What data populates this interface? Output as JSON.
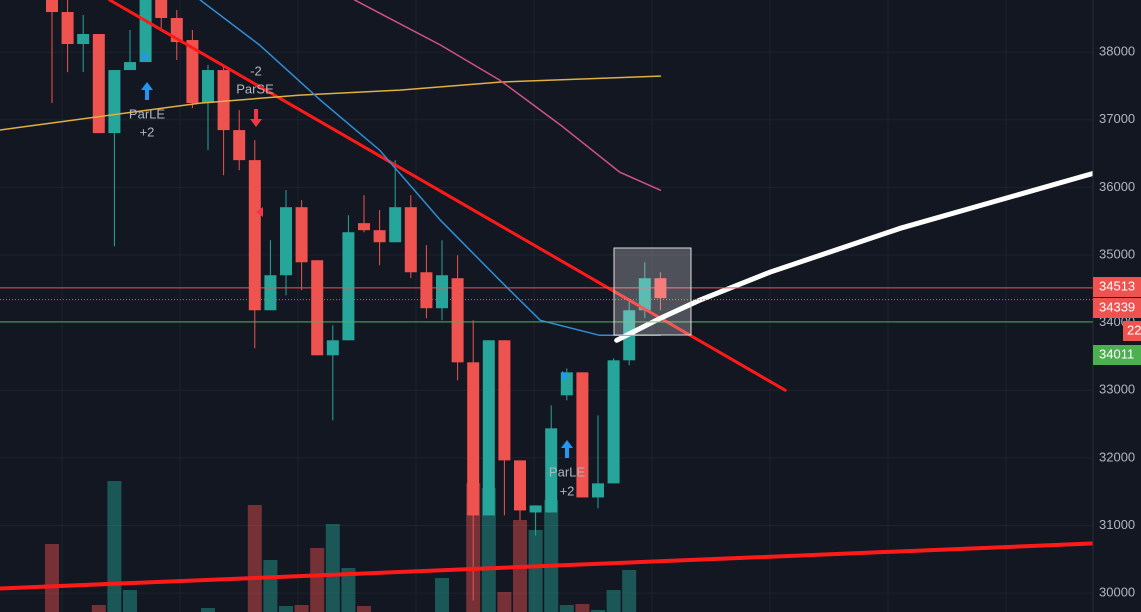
{
  "chart_data": {
    "type": "candlestick",
    "ylim": [
      29720,
      38770
    ],
    "yticks": [
      30000,
      31000,
      32000,
      33000,
      34000,
      35000,
      36000,
      37000,
      38000
    ],
    "grid": true,
    "up_color": "#26a69a",
    "down_color": "#ef5350",
    "open": [
      38770,
      38592,
      38119,
      38267,
      36802,
      37734,
      37852,
      38770,
      38504,
      38178,
      37246,
      37734,
      36846,
      36402,
      34182,
      34700,
      35706,
      34922,
      33516,
      33738,
      35470,
      35366,
      35188,
      35706,
      34744,
      34212,
      34656,
      33412,
      31148,
      33738,
      31962,
      31192,
      31192,
      32924,
      33264,
      31414,
      31622,
      33442,
      34182,
      34656
    ],
    "close": [
      38592,
      38119,
      38267,
      36802,
      37734,
      37852,
      38770,
      38504,
      38148,
      37246,
      37734,
      36846,
      36402,
      34182,
      34700,
      35706,
      34892,
      33516,
      33738,
      35336,
      35366,
      35188,
      35706,
      34744,
      34212,
      34700,
      33412,
      31148,
      33738,
      31962,
      31222,
      31296,
      32436,
      33264,
      31414,
      31622,
      33442,
      34182,
      34656,
      34360
    ],
    "high": [
      38770,
      38770,
      38548,
      38267,
      37734,
      38326,
      38770,
      38770,
      38622,
      38326,
      37808,
      37808,
      37142,
      36698,
      35218,
      35958,
      35810,
      34922,
      33960,
      35588,
      35884,
      35662,
      36402,
      35884,
      35144,
      35218,
      34996,
      34034,
      33738,
      33738,
      31962,
      31296,
      32776,
      33324,
      33264,
      32628,
      33472,
      34330,
      34892,
      34744
    ],
    "low": [
      37246,
      37704,
      37704,
      36802,
      35129,
      37734,
      37852,
      38326,
      37882,
      37172,
      36550,
      36180,
      36254,
      33620,
      34182,
      34404,
      34478,
      33516,
      32554,
      33738,
      35336,
      34848,
      35188,
      34656,
      34064,
      34034,
      33146,
      29890,
      31148,
      31148,
      31074,
      30852,
      31192,
      32850,
      31414,
      31252,
      31622,
      33368,
      34064,
      34182
    ],
    "volume": [
      68,
      0,
      0,
      7,
      131,
      22,
      0,
      0,
      0,
      0,
      4,
      0,
      0,
      107,
      52,
      6,
      7,
      64,
      88,
      44,
      6,
      0,
      0,
      0,
      0,
      34,
      0,
      129,
      124,
      20,
      92,
      82,
      112,
      7,
      8,
      2,
      22,
      42,
      0,
      0
    ],
    "y2lim": [
      0,
      200
    ],
    "lines": [
      {
        "color": "#ff1a1a",
        "width": 3,
        "x": [
          3.7,
          47
        ],
        "values": [
          38770,
          33000
        ]
      },
      {
        "color": "#ff1a1a",
        "width": 4,
        "x": [
          -3.4,
          66.8
        ],
        "values": [
          30068,
          30734
        ]
      },
      {
        "color": "#ffffff",
        "width": 5,
        "x": [
          36.2,
          39,
          41.5,
          46,
          54.4,
          66.8
        ],
        "values": [
          33738,
          34064,
          34330,
          34744,
          35396,
          36210
        ]
      },
      {
        "color": "#e0b040",
        "width": 1.5,
        "x": [
          -3.4,
          9.5,
          15.9,
          22.3,
          28.7,
          39
        ],
        "values": [
          36846,
          37246,
          37364,
          37438,
          37556,
          37645
        ]
      },
      {
        "color": "#d0508a",
        "width": 1.5,
        "x": [
          19.4,
          24.9,
          28.7,
          32.6,
          36.4,
          39
        ],
        "values": [
          38770,
          38104,
          37586,
          36920,
          36224,
          35958
        ]
      },
      {
        "color": "#2e8fd8",
        "width": 1.5,
        "x": [
          9.5,
          13.3,
          17.2,
          21,
          24.9,
          28.7,
          31.3,
          35.1,
          39
        ],
        "values": [
          38770,
          38104,
          37290,
          36550,
          35514,
          34626,
          34034,
          33812,
          33812
        ]
      }
    ],
    "price_lines": [
      {
        "value": 34513,
        "label": "34513",
        "color": "#ef5350",
        "style": "solid"
      },
      {
        "value": 34339,
        "label": "34339",
        "color": "#ef5350",
        "style": "dotted"
      },
      {
        "value": 34011,
        "label": "34011",
        "color": "#4caf50",
        "style": "solid"
      }
    ],
    "timer_label": "22",
    "annotations": [
      "ParLE",
      "+2",
      "-2",
      "ParSE",
      "ParLE",
      "+2"
    ]
  }
}
